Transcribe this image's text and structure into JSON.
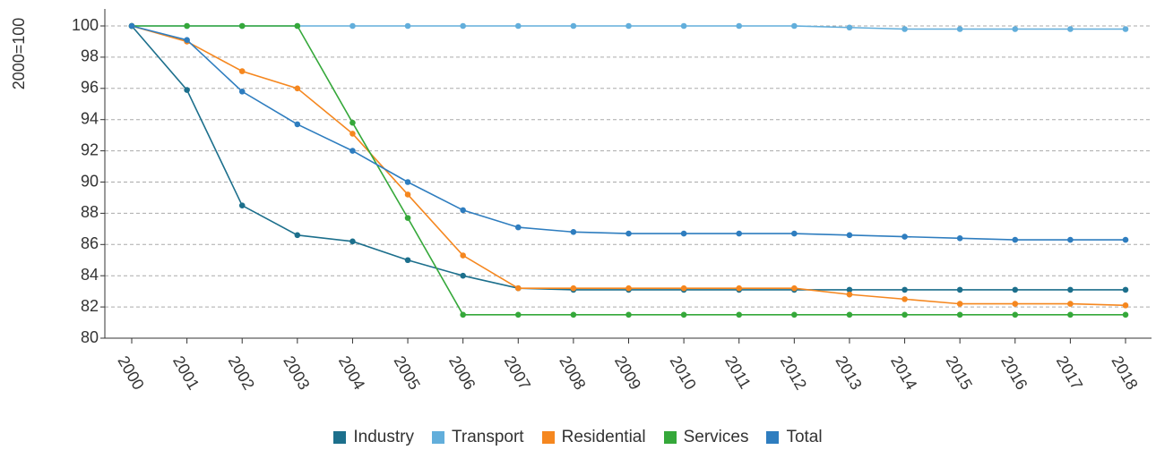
{
  "chart_data": {
    "type": "line",
    "y_label": "2000=100",
    "categories": [
      "2000",
      "2001",
      "2002",
      "2003",
      "2004",
      "2005",
      "2006",
      "2007",
      "2008",
      "2009",
      "2010",
      "2011",
      "2012",
      "2013",
      "2014",
      "2015",
      "2016",
      "2017",
      "2018"
    ],
    "series": [
      {
        "name": "Industry",
        "color": "#1c6f8c",
        "values": [
          100,
          95.9,
          88.5,
          86.6,
          86.2,
          85.0,
          84.0,
          83.2,
          83.1,
          83.1,
          83.1,
          83.1,
          83.1,
          83.1,
          83.1,
          83.1,
          83.1,
          83.1,
          83.1
        ]
      },
      {
        "name": "Transport",
        "color": "#62aedb",
        "values": [
          100,
          100,
          100,
          100,
          100,
          100,
          100,
          100,
          100,
          100,
          100,
          100,
          100,
          99.9,
          99.8,
          99.8,
          99.8,
          99.8,
          99.8
        ]
      },
      {
        "name": "Residential",
        "color": "#f5871f",
        "values": [
          100,
          99.0,
          97.1,
          96.0,
          93.1,
          89.2,
          85.3,
          83.2,
          83.2,
          83.2,
          83.2,
          83.2,
          83.2,
          82.8,
          82.5,
          82.2,
          82.2,
          82.2,
          82.1
        ]
      },
      {
        "name": "Services",
        "color": "#35a83a",
        "values": [
          100,
          100,
          100,
          100,
          93.8,
          87.7,
          81.5,
          81.5,
          81.5,
          81.5,
          81.5,
          81.5,
          81.5,
          81.5,
          81.5,
          81.5,
          81.5,
          81.5,
          81.5
        ]
      },
      {
        "name": "Total",
        "color": "#2e7dbf",
        "values": [
          100,
          99.1,
          95.8,
          93.7,
          92.0,
          90.0,
          88.2,
          87.1,
          86.8,
          86.7,
          86.7,
          86.7,
          86.7,
          86.6,
          86.5,
          86.4,
          86.3,
          86.3,
          86.3
        ]
      }
    ],
    "ylim": [
      80,
      100
    ],
    "yticks": [
      80,
      82,
      84,
      86,
      88,
      90,
      92,
      94,
      96,
      98,
      100
    ],
    "grid": true
  }
}
